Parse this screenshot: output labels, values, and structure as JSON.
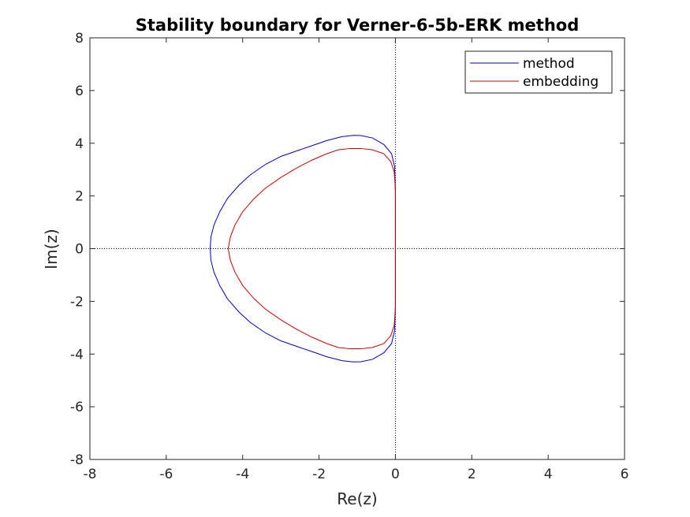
{
  "chart_data": {
    "type": "line",
    "title": "Stability boundary for Verner-6-5b-ERK method",
    "xlabel": "Re(z)",
    "ylabel": "Im(z)",
    "xlim": [
      -8,
      6
    ],
    "ylim": [
      -8,
      8
    ],
    "xticks": [
      -8,
      -6,
      -4,
      -2,
      0,
      2,
      4,
      6
    ],
    "yticks": [
      -8,
      -6,
      -4,
      -2,
      0,
      2,
      4,
      6,
      8
    ],
    "xtick_labels": [
      "-8",
      "-6",
      "-4",
      "-2",
      "0",
      "2",
      "4",
      "6"
    ],
    "ytick_labels": [
      "-8",
      "-6",
      "-4",
      "-2",
      "0",
      "2",
      "4",
      "6",
      "8"
    ],
    "grid": false,
    "reference_lines": {
      "x": 0,
      "y": 0,
      "style": "dotted"
    },
    "legend": {
      "position": "top-right"
    },
    "series": [
      {
        "name": "method",
        "color": "#0000cc",
        "closed": true,
        "x": [
          0.0,
          -0.02,
          -0.1,
          -0.3,
          -0.6,
          -0.9,
          -1.1,
          -1.4,
          -1.8,
          -2.2,
          -2.6,
          -3.0,
          -3.4,
          -3.8,
          -4.1,
          -4.4,
          -4.6,
          -4.75,
          -4.83,
          -4.85
        ],
        "y": [
          2.2,
          3.1,
          3.6,
          3.95,
          4.2,
          4.29,
          4.3,
          4.25,
          4.1,
          3.9,
          3.7,
          3.5,
          3.2,
          2.8,
          2.4,
          1.9,
          1.4,
          0.9,
          0.45,
          0.0
        ]
      },
      {
        "name": "embedding",
        "color": "#cc0000",
        "closed": true,
        "x": [
          0.0,
          -0.03,
          -0.12,
          -0.3,
          -0.6,
          -0.9,
          -1.2,
          -1.5,
          -1.8,
          -2.2,
          -2.6,
          -3.0,
          -3.4,
          -3.7,
          -4.0,
          -4.2,
          -4.32,
          -4.38
        ],
        "y": [
          2.2,
          2.9,
          3.3,
          3.6,
          3.75,
          3.8,
          3.8,
          3.75,
          3.6,
          3.35,
          3.05,
          2.7,
          2.3,
          1.9,
          1.4,
          0.9,
          0.45,
          0.0
        ]
      }
    ]
  }
}
